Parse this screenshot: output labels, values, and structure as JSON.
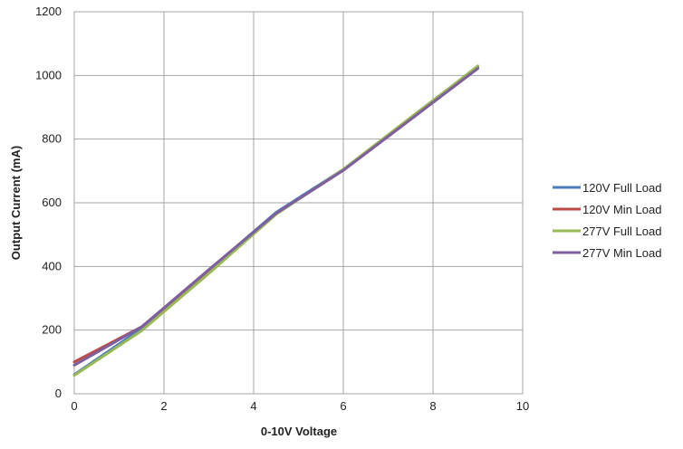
{
  "chart_data": {
    "type": "line",
    "title": "",
    "xlabel": "0-10V Voltage",
    "ylabel": "Output Current (mA)",
    "xlim": [
      0,
      10
    ],
    "ylim": [
      0,
      1200
    ],
    "xticks": [
      0,
      2,
      4,
      6,
      8,
      10
    ],
    "yticks": [
      0,
      200,
      400,
      600,
      800,
      1000,
      1200
    ],
    "grid": true,
    "legend_position": "right",
    "series": [
      {
        "name": "120V Full Load",
        "color": "#4a7ebb",
        "x": [
          0,
          1.5,
          3,
          4.5,
          6,
          7.5,
          9
        ],
        "y": [
          60,
          205,
          388,
          570,
          705,
          865,
          1025
        ]
      },
      {
        "name": "120V Min Load",
        "color": "#be4b48",
        "x": [
          0,
          1.5,
          3,
          4.5,
          6,
          7.5,
          9
        ],
        "y": [
          100,
          210,
          385,
          566,
          702,
          862,
          1022
        ]
      },
      {
        "name": "277V Full Load",
        "color": "#98b954",
        "x": [
          0,
          1.5,
          3,
          4.5,
          6,
          7.5,
          8.5,
          9
        ],
        "y": [
          58,
          198,
          378,
          564,
          705,
          868,
          975,
          1030
        ]
      },
      {
        "name": "277V Min Load",
        "color": "#7d5fa0",
        "x": [
          0,
          1.5,
          3,
          4.5,
          6,
          7.5,
          9
        ],
        "y": [
          90,
          210,
          390,
          567,
          702,
          862,
          1022
        ]
      }
    ]
  }
}
